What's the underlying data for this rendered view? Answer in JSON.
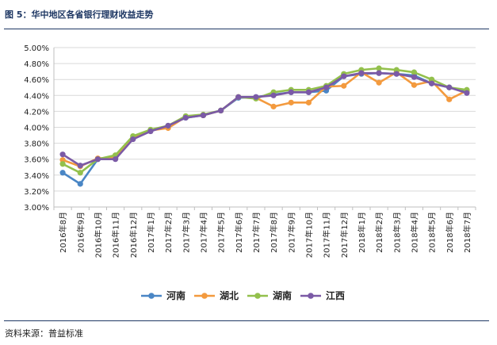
{
  "figure": {
    "title": "图 5：华中地区各省银行理财收益走势",
    "source": "资料来源：普益标准"
  },
  "chart_data": {
    "type": "line",
    "title": "华中地区各省银行理财收益走势",
    "categories": [
      "2016年8月",
      "2016年9月",
      "2016年10月",
      "2016年11月",
      "2016年12月",
      "2017年1月",
      "2017年2月",
      "2017年3月",
      "2017年4月",
      "2017年5月",
      "2017年6月",
      "2017年7月",
      "2017年8月",
      "2017年9月",
      "2017年10月",
      "2017年11月",
      "2017年12月",
      "2018年1月",
      "2018年2月",
      "2018年3月",
      "2018年4月",
      "2018年5月",
      "2018年6月",
      "2018年7月"
    ],
    "yticks": [
      "3.00%",
      "3.20%",
      "3.40%",
      "3.60%",
      "3.80%",
      "4.00%",
      "4.20%",
      "4.40%",
      "4.60%",
      "4.80%",
      "5.00%"
    ],
    "ylim": [
      3.0,
      5.0
    ],
    "legend_position": "bottom",
    "series": [
      {
        "name": "河南",
        "color": "#4a86c5",
        "values": [
          3.43,
          3.29,
          3.6,
          3.61,
          3.86,
          3.96,
          4.02,
          4.12,
          4.15,
          4.21,
          4.37,
          4.38,
          4.41,
          4.44,
          4.44,
          4.46,
          4.64,
          4.67,
          4.68,
          4.67,
          4.65,
          4.55,
          4.5,
          4.45
        ]
      },
      {
        "name": "湖北",
        "color": "#f39a3e",
        "values": [
          3.59,
          3.51,
          3.61,
          3.62,
          3.87,
          3.96,
          3.99,
          4.13,
          4.15,
          4.21,
          4.38,
          4.37,
          4.26,
          4.31,
          4.31,
          4.51,
          4.52,
          4.69,
          4.56,
          4.69,
          4.53,
          4.58,
          4.35,
          4.46
        ]
      },
      {
        "name": "湖南",
        "color": "#93c04c",
        "values": [
          3.54,
          3.43,
          3.6,
          3.65,
          3.89,
          3.97,
          4.02,
          4.14,
          4.16,
          4.21,
          4.38,
          4.36,
          4.44,
          4.47,
          4.47,
          4.52,
          4.67,
          4.72,
          4.74,
          4.72,
          4.69,
          4.6,
          4.5,
          4.47
        ]
      },
      {
        "name": "江西",
        "color": "#7b5aa6",
        "values": [
          3.66,
          3.52,
          3.6,
          3.6,
          3.85,
          3.95,
          4.02,
          4.12,
          4.15,
          4.21,
          4.38,
          4.38,
          4.4,
          4.44,
          4.44,
          4.5,
          4.64,
          4.68,
          4.68,
          4.67,
          4.63,
          4.55,
          4.5,
          4.43
        ]
      }
    ]
  }
}
